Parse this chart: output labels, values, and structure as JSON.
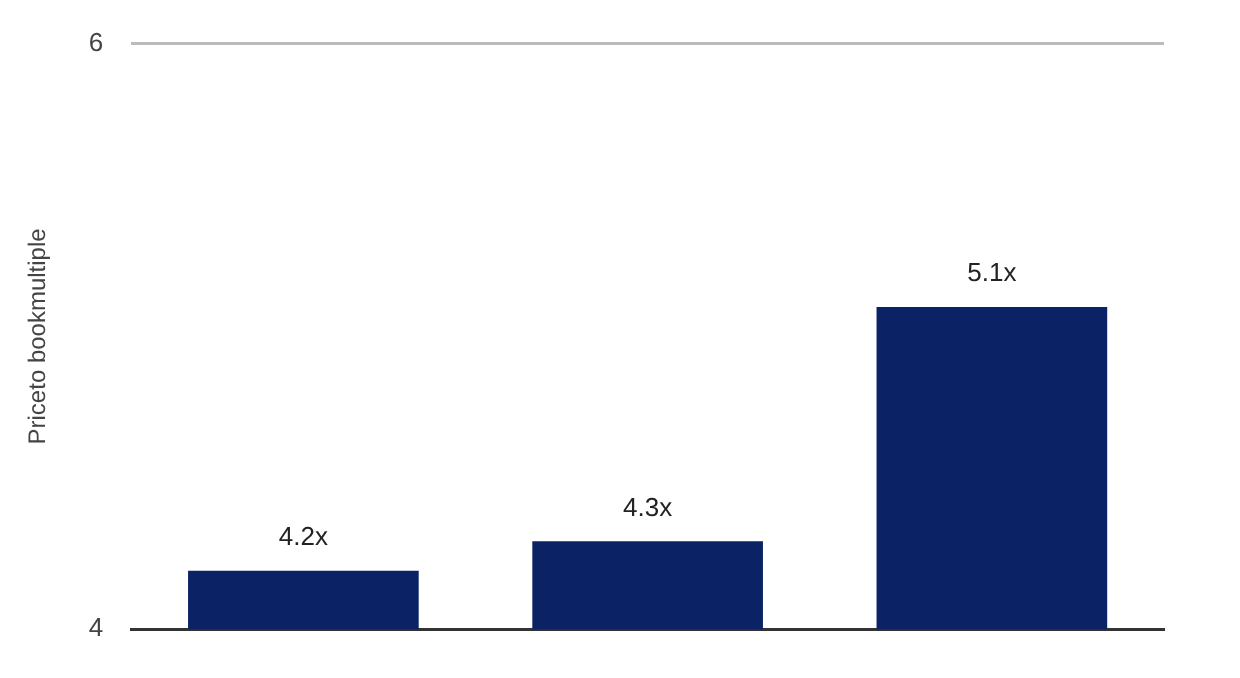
{
  "chart_data": {
    "type": "bar",
    "ylabel": "Priceto bookmultiple",
    "categories": [
      null,
      null,
      null
    ],
    "values": [
      4.2,
      4.3,
      5.1
    ],
    "value_labels": [
      "4.2x",
      "4.3x",
      "5.1x"
    ],
    "color": "#0b2265",
    "ylim": [
      4,
      6
    ],
    "yticks": [
      4,
      6
    ],
    "grid": "y"
  }
}
